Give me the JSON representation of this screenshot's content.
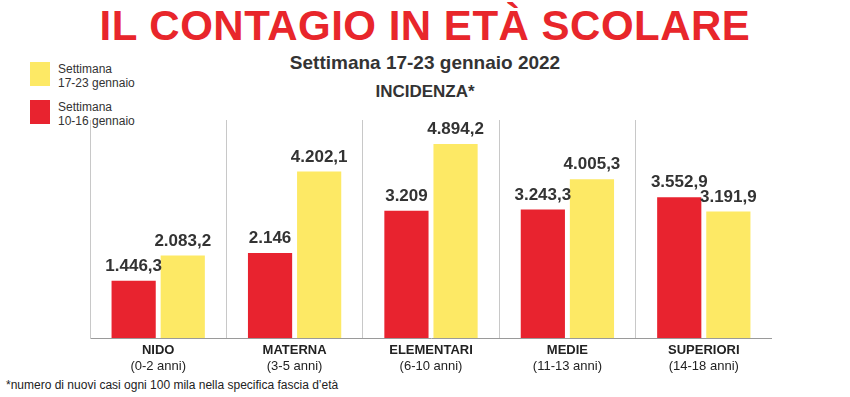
{
  "chart_data": {
    "type": "bar",
    "title": "IL CONTAGIO IN ETÀ SCOLARE",
    "subtitle": "Settimana 17-23 gennaio 2022",
    "y_label": "INCIDENZA*",
    "annotations": [
      "*numero di nuovi casi ogni 100 mila nella specifica fascia d’età"
    ],
    "categories": [
      "NIDO\n(0-2 anni)",
      "MATERNA\n(3-5 anni)",
      "ELEMENTARI\n(6-10 anni)",
      "MEDIE\n(11-13 anni)",
      "SUPERIORI\n(14-18 anni)"
    ],
    "series": [
      {
        "name": "Settimana\n10-16 gennaio",
        "color": "#e8232f",
        "values": [
          1446.3,
          2146,
          3209,
          3243.3,
          3552.9
        ],
        "value_labels": [
          "1.446,3",
          "2.146",
          "3.209",
          "3.243,3",
          "3.552,9"
        ]
      },
      {
        "name": "Settimana\n17-23 gennaio",
        "color": "#fde965",
        "values": [
          2083.2,
          4202.1,
          4894.2,
          4005.3,
          3191.9
        ],
        "value_labels": [
          "2.083,2",
          "4.202,1",
          "4.894,2",
          "4.005,3",
          "3.191,9"
        ]
      }
    ],
    "ylim": [
      0,
      5500
    ],
    "tick_labels": false,
    "grid": true,
    "legend": "top-left",
    "data_labels": true
  }
}
